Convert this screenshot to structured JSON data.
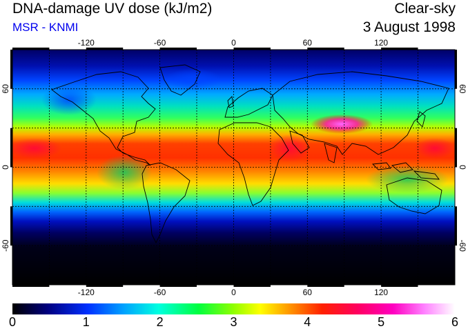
{
  "header": {
    "title": "DNA-damage UV dose (kJ/m2)",
    "source": "MSR - KNMI",
    "sky_condition": "Clear-sky",
    "date": "3 August 1998"
  },
  "map": {
    "projection": "equirectangular",
    "lon_range": [
      -180,
      180
    ],
    "lat_range": [
      -90,
      90
    ],
    "grid_lines": true,
    "lon_ticks": [
      "-120",
      "-60",
      "0",
      "60",
      "120"
    ],
    "lat_ticks": [
      "60",
      "0",
      "-60"
    ],
    "lat_ticks_right": [
      "60",
      "0",
      "-60"
    ],
    "coastlines": true,
    "field_description_bands": [
      {
        "lat": 60,
        "dose": 2.0
      },
      {
        "lat": 30,
        "dose": 3.5
      },
      {
        "lat": 15,
        "dose": 4.2
      },
      {
        "lat": 0,
        "dose": 3.8
      },
      {
        "lat": -15,
        "dose": 3.0
      },
      {
        "lat": -30,
        "dose": 1.5
      },
      {
        "lat": -45,
        "dose": 0.3
      },
      {
        "lat": -60,
        "dose": 0.0
      }
    ],
    "hotspot_tibet_dose": 5.5
  },
  "colorbar": {
    "min": 0,
    "max": 6,
    "labels": [
      "0",
      "1",
      "2",
      "3",
      "4",
      "5",
      "6"
    ],
    "colors": [
      "#000000",
      "#000066",
      "#0000ff",
      "#00ccff",
      "#00ff66",
      "#ccff00",
      "#ffee00",
      "#ff8800",
      "#ff0000",
      "#ff0099",
      "#ff66ff",
      "#ffffff"
    ]
  }
}
